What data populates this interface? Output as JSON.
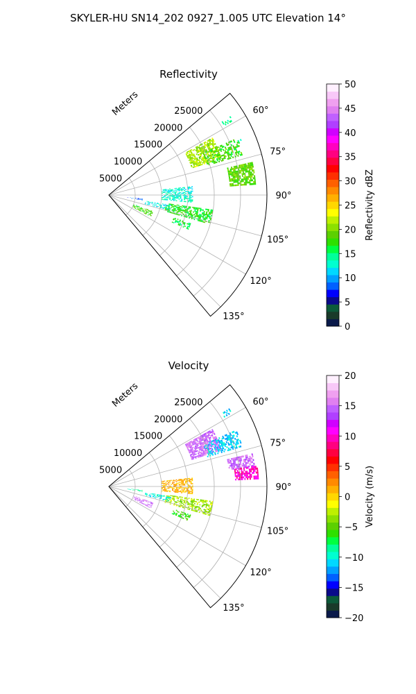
{
  "title": "SKYLER-HU  SN14_202  0927_1.005 UTC Elevation 14°",
  "range_unit_label": "Meters",
  "chart_data": [
    {
      "type": "heatmap",
      "projection": "polar-sector",
      "title": "Reflectivity",
      "azimuth_range_deg": [
        50,
        140
      ],
      "range_lim": [
        0,
        30000
      ],
      "range_ticks": [
        5000,
        10000,
        15000,
        20000,
        25000
      ],
      "range_tick_labels": [
        "5000",
        "10000",
        "15000",
        "20000",
        "25000"
      ],
      "azimuth_ticks": [
        60,
        75,
        90,
        105,
        120,
        135
      ],
      "azimuth_tick_labels": [
        "60°",
        "75°",
        "90°",
        "105°",
        "120°",
        "135°"
      ],
      "grid": true,
      "colorbar": {
        "label": "Reflectivity dBZ",
        "range": [
          0,
          50
        ],
        "ticks": [
          0,
          5,
          10,
          15,
          20,
          25,
          30,
          35,
          40,
          45,
          50
        ],
        "tick_labels": [
          "0",
          "5",
          "10",
          "15",
          "20",
          "25",
          "30",
          "35",
          "40",
          "45",
          "50"
        ],
        "colors": [
          "#0a1a4a",
          "#1a3a2a",
          "#0c5a3a",
          "#0a0a8a",
          "#0000ff",
          "#0060ff",
          "#00a0ff",
          "#00d8ff",
          "#00ffd0",
          "#00ff9a",
          "#00ff40",
          "#2ee000",
          "#5cd000",
          "#8ce000",
          "#bef000",
          "#ffff00",
          "#ffd700",
          "#ffb000",
          "#ff8a00",
          "#ff6000",
          "#ff3000",
          "#ff0000",
          "#ff0040",
          "#ff0080",
          "#ff00c0",
          "#ff00ff",
          "#d000ff",
          "#b040ff",
          "#c060ff",
          "#e080f0",
          "#f0a0f0",
          "#f8c8f8",
          "#fff0ff"
        ]
      },
      "echoes": [
        {
          "az": [
            61,
            72
          ],
          "r": [
            16500,
            22500
          ],
          "value": 21,
          "density": 0.7
        },
        {
          "az": [
            66,
            73
          ],
          "r": [
            19500,
            26500
          ],
          "value": 18,
          "density": 0.45
        },
        {
          "az": [
            77,
            86
          ],
          "r": [
            23000,
            28000
          ],
          "value": 19,
          "density": 0.7
        },
        {
          "az": [
            84,
            95
          ],
          "r": [
            10000,
            16000
          ],
          "value": 13,
          "density": 0.55
        },
        {
          "az": [
            98,
            106
          ],
          "r": [
            11000,
            20000
          ],
          "value": 17,
          "density": 0.6
        },
        {
          "az": [
            99,
            104
          ],
          "r": [
            7000,
            12000
          ],
          "value": 12,
          "density": 0.45
        },
        {
          "az": [
            110,
            117
          ],
          "r": [
            5000,
            9000
          ],
          "value": 18,
          "density": 0.5
        },
        {
          "az": [
            109,
            113
          ],
          "r": [
            13000,
            16500
          ],
          "value": 16,
          "density": 0.5
        },
        {
          "az": [
            96,
            99
          ],
          "r": [
            3500,
            6500
          ],
          "value": 8,
          "density": 0.4
        },
        {
          "az": [
            57,
            59
          ],
          "r": [
            25500,
            27500
          ],
          "value": 15,
          "density": 0.4
        },
        {
          "az": [
            67,
            68
          ],
          "r": [
            26000,
            27500
          ],
          "value": 14,
          "density": 0.4
        }
      ]
    },
    {
      "type": "heatmap",
      "projection": "polar-sector",
      "title": "Velocity",
      "azimuth_range_deg": [
        50,
        140
      ],
      "range_lim": [
        0,
        30000
      ],
      "range_ticks": [
        5000,
        10000,
        15000,
        20000,
        25000
      ],
      "range_tick_labels": [
        "5000",
        "10000",
        "15000",
        "20000",
        "25000"
      ],
      "azimuth_ticks": [
        60,
        75,
        90,
        105,
        120,
        135
      ],
      "azimuth_tick_labels": [
        "60°",
        "75°",
        "90°",
        "105°",
        "120°",
        "135°"
      ],
      "grid": true,
      "colorbar": {
        "label": "Velocity (m/s)",
        "range": [
          -20,
          20
        ],
        "ticks": [
          -20,
          -15,
          -10,
          -5,
          0,
          5,
          10,
          15,
          20
        ],
        "tick_labels": [
          "−20",
          "−15",
          "−10",
          "−5",
          "0",
          "5",
          "10",
          "15",
          "20"
        ],
        "colors": [
          "#0a1a4a",
          "#1a3a2a",
          "#0c5a3a",
          "#0a0a8a",
          "#0000ff",
          "#0060ff",
          "#00a0ff",
          "#00d8ff",
          "#00ffd0",
          "#00ff9a",
          "#00ff40",
          "#2ee000",
          "#5cd000",
          "#8ce000",
          "#bef000",
          "#ffff00",
          "#ffd700",
          "#ffb000",
          "#ff8a00",
          "#ff6000",
          "#ff3000",
          "#ff0000",
          "#ff0040",
          "#ff0080",
          "#ff00c0",
          "#ff00ff",
          "#d000ff",
          "#b040ff",
          "#c060ff",
          "#e080f0",
          "#f0a0f0",
          "#f8c8f8",
          "#fff0ff"
        ]
      },
      "echoes": [
        {
          "az": [
            61,
            72
          ],
          "r": [
            16500,
            22500
          ],
          "value": 15,
          "density": 0.75
        },
        {
          "az": [
            66,
            73
          ],
          "r": [
            19500,
            26500
          ],
          "value": -11,
          "density": 0.45
        },
        {
          "az": [
            77,
            82
          ],
          "r": [
            23000,
            28000
          ],
          "value": 15,
          "density": 0.7
        },
        {
          "az": [
            82,
            87
          ],
          "r": [
            24000,
            28500
          ],
          "value": 10,
          "density": 0.75
        },
        {
          "az": [
            84,
            95
          ],
          "r": [
            10000,
            16000
          ],
          "value": 1,
          "density": 0.55
        },
        {
          "az": [
            98,
            106
          ],
          "r": [
            11000,
            20000
          ],
          "value": -3,
          "density": 0.6
        },
        {
          "az": [
            99,
            104
          ],
          "r": [
            7000,
            12000
          ],
          "value": -10,
          "density": 0.45
        },
        {
          "az": [
            110,
            117
          ],
          "r": [
            5000,
            9000
          ],
          "value": 15,
          "density": 0.5
        },
        {
          "az": [
            109,
            113
          ],
          "r": [
            13000,
            16500
          ],
          "value": -6,
          "density": 0.5
        },
        {
          "az": [
            96,
            99
          ],
          "r": [
            3500,
            6500
          ],
          "value": -9,
          "density": 0.4
        },
        {
          "az": [
            57,
            59
          ],
          "r": [
            25500,
            27500
          ],
          "value": -11,
          "density": 0.4
        }
      ]
    }
  ]
}
